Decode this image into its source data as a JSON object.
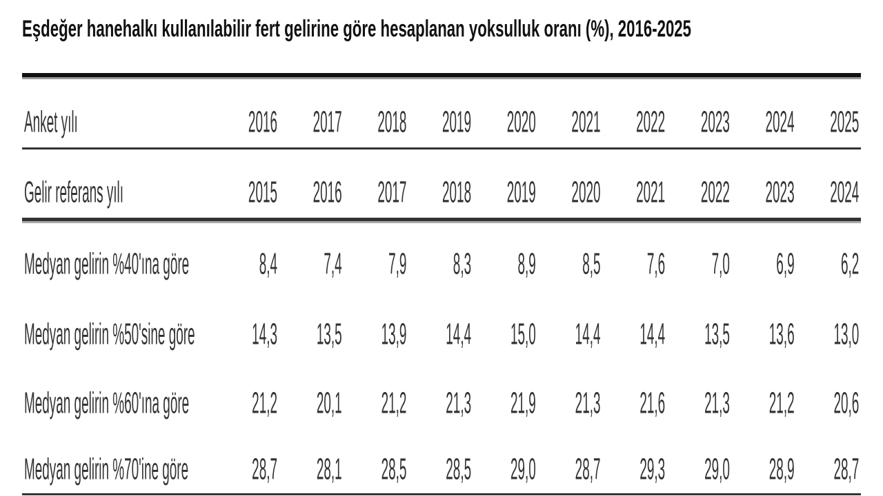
{
  "title": "Eşdeğer hanehalkı kullanılabilir fert gelirine göre hesaplanan yoksulluk oranı (%), 2016-2025",
  "table": {
    "header_rows": [
      {
        "label": "Anket yılı",
        "values": [
          "2016",
          "2017",
          "2018",
          "2019",
          "2020",
          "2021",
          "2022",
          "2023",
          "2024",
          "2025"
        ]
      },
      {
        "label": "Gelir referans yılı",
        "values": [
          "2015",
          "2016",
          "2017",
          "2018",
          "2019",
          "2020",
          "2021",
          "2022",
          "2023",
          "2024"
        ]
      }
    ],
    "rows": [
      {
        "label": "Medyan gelirin %40'ına göre",
        "values": [
          "8,4",
          "7,4",
          "7,9",
          "8,3",
          "8,9",
          "8,5",
          "7,6",
          "7,0",
          "6,9",
          "6,2"
        ]
      },
      {
        "label": "Medyan gelirin %50'sine göre",
        "values": [
          "14,3",
          "13,5",
          "13,9",
          "14,4",
          "15,0",
          "14,4",
          "14,4",
          "13,5",
          "13,6",
          "13,0"
        ]
      },
      {
        "label": "Medyan gelirin %60'ına göre",
        "values": [
          "21,2",
          "20,1",
          "21,2",
          "21,3",
          "21,9",
          "21,3",
          "21,6",
          "21,3",
          "21,2",
          "20,6"
        ]
      },
      {
        "label": "Medyan gelirin %70'ine göre",
        "values": [
          "28,7",
          "28,1",
          "28,5",
          "28,5",
          "29,0",
          "28,7",
          "29,3",
          "29,0",
          "28,9",
          "28,7"
        ]
      }
    ]
  }
}
